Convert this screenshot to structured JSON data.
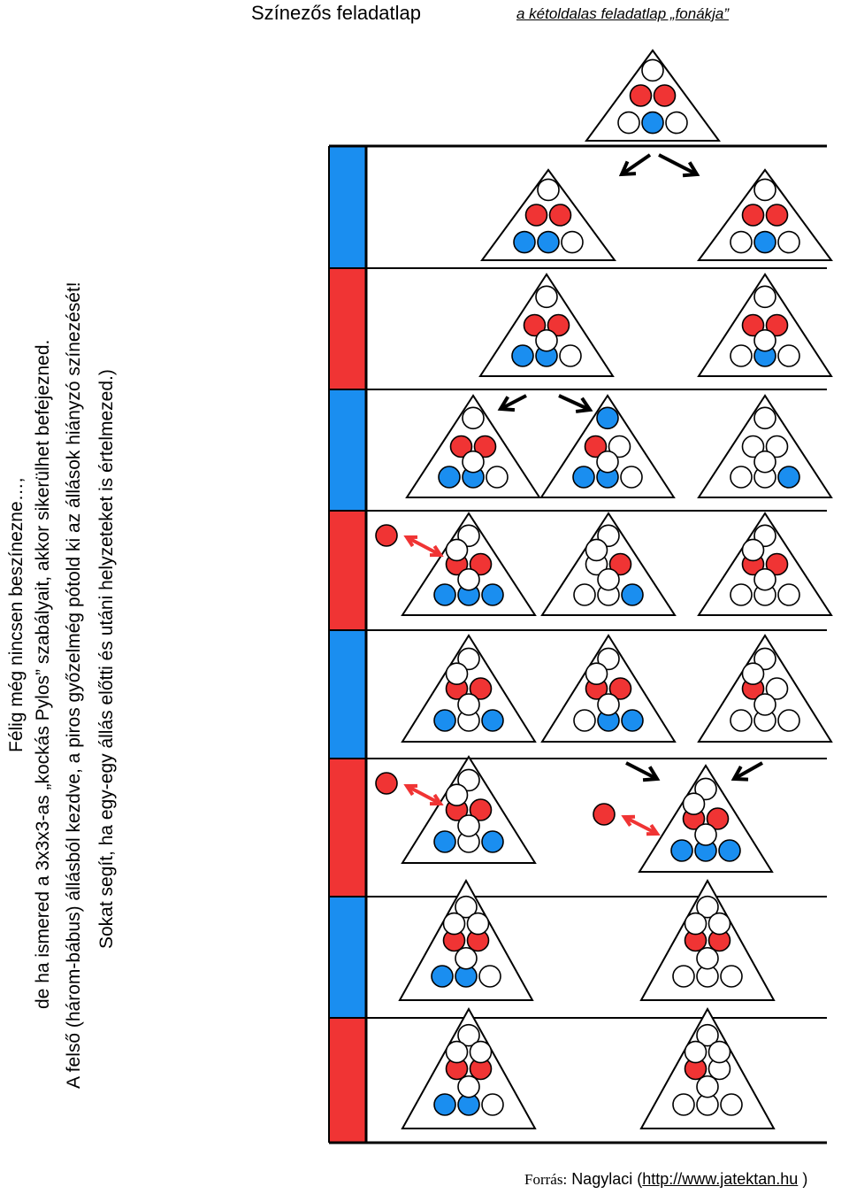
{
  "header": {
    "title": "Színezős feladatlap",
    "subtitle": "a kétoldalas feladatlap „fonákja”"
  },
  "instructions": {
    "line1": "Félig még nincsen beszínezne…,",
    "line2": "de ha ismered a 3x3x3-as „kockás Pylos” szabályait, akkor sikerülhet befejezned.",
    "line3": "A felső (három-bábus) állásból kezdve, a piros győzelmég pótold ki az állások hiányzó színezését!",
    "line4": "Sokat segít, ha egy-egy állás előtti és utáni helyzeteket is értelmezed.)"
  },
  "footer": {
    "label": "Forrás:",
    "author": "Nagylaci (",
    "url": "http://www.jatektan.hu",
    "close": ")"
  },
  "colors": {
    "red": "#f03434",
    "blue": "#1a8ef0",
    "stripe_blue": "#1a8ef0",
    "stripe_red": "#f03434",
    "arrow_red": "#f03434",
    "arrow_black": "#000000"
  },
  "turn_stripes": [
    "blue",
    "red",
    "blue",
    "red",
    "blue",
    "red",
    "blue",
    "red"
  ],
  "positions": [
    {
      "name": "start",
      "top": [
        "w"
      ],
      "mid": [
        "r",
        "r"
      ],
      "bot": [
        "w",
        "b",
        "w"
      ],
      "overlay": []
    },
    {
      "name": "row1-left",
      "top": [
        "w"
      ],
      "mid": [
        "r",
        "r"
      ],
      "bot": [
        "b",
        "b",
        "w"
      ],
      "overlay": []
    },
    {
      "name": "row1-right",
      "top": [
        "w"
      ],
      "mid": [
        "r",
        "r"
      ],
      "bot": [
        "w",
        "b",
        "w"
      ],
      "overlay": []
    },
    {
      "name": "row2-left",
      "top": [
        "w"
      ],
      "mid": [
        "r",
        "r"
      ],
      "bot": [
        "b",
        "b",
        "w"
      ],
      "overlay": [
        "w"
      ]
    },
    {
      "name": "row2-right",
      "top": [
        "w"
      ],
      "mid": [
        "r",
        "r"
      ],
      "bot": [
        "w",
        "b",
        "w"
      ],
      "overlay": [
        "w"
      ]
    },
    {
      "name": "row3-a",
      "top": [
        "w"
      ],
      "mid": [
        "r",
        "r"
      ],
      "bot": [
        "b",
        "b",
        "w"
      ],
      "overlay": [
        "w"
      ]
    },
    {
      "name": "row3-b",
      "top": [
        "b"
      ],
      "mid": [
        "r",
        "w"
      ],
      "bot": [
        "b",
        "b",
        "w"
      ],
      "overlay": [
        "w"
      ]
    },
    {
      "name": "row3-c",
      "top": [
        "w"
      ],
      "mid": [
        "w",
        "w"
      ],
      "bot": [
        "w",
        "w",
        "b"
      ],
      "overlay": [
        "w"
      ]
    },
    {
      "name": "row4-a",
      "top": [
        "w"
      ],
      "mid": [
        "r",
        "r"
      ],
      "bot": [
        "b",
        "b",
        "b"
      ],
      "overlay": [
        "w",
        "w"
      ]
    },
    {
      "name": "row4-b",
      "top": [
        "w"
      ],
      "mid": [
        "w",
        "r"
      ],
      "bot": [
        "w",
        "w",
        "b"
      ],
      "overlay": [
        "w",
        "w"
      ]
    },
    {
      "name": "row4-c",
      "top": [
        "w"
      ],
      "mid": [
        "r",
        "r"
      ],
      "bot": [
        "w",
        "w",
        "w"
      ],
      "overlay": [
        "w",
        "w"
      ]
    },
    {
      "name": "row5-a",
      "top": [
        "w"
      ],
      "mid": [
        "r",
        "r"
      ],
      "bot": [
        "b",
        "w",
        "b"
      ],
      "overlay": [
        "w",
        "w"
      ]
    },
    {
      "name": "row5-b",
      "top": [
        "w"
      ],
      "mid": [
        "r",
        "r"
      ],
      "bot": [
        "w",
        "b",
        "b"
      ],
      "overlay": [
        "w",
        "w"
      ]
    },
    {
      "name": "row5-c",
      "top": [
        "w"
      ],
      "mid": [
        "r",
        "w"
      ],
      "bot": [
        "w",
        "w",
        "w"
      ],
      "overlay": [
        "w",
        "w"
      ]
    },
    {
      "name": "row6-a",
      "top": [
        "w"
      ],
      "mid": [
        "r",
        "r"
      ],
      "bot": [
        "b",
        "w",
        "b"
      ],
      "overlay": [
        "w",
        "w"
      ]
    },
    {
      "name": "row6-b",
      "top": [
        "w"
      ],
      "mid": [
        "r",
        "r"
      ],
      "bot": [
        "b",
        "b",
        "b"
      ],
      "overlay": [
        "w",
        "w"
      ]
    },
    {
      "name": "row7-a",
      "top": [
        "w"
      ],
      "mid": [
        "r",
        "r"
      ],
      "bot": [
        "b",
        "b",
        "w"
      ],
      "overlay": [
        "w",
        "w",
        "w"
      ]
    },
    {
      "name": "row7-b",
      "top": [
        "w"
      ],
      "mid": [
        "r",
        "r"
      ],
      "bot": [
        "w",
        "w",
        "w"
      ],
      "overlay": [
        "w",
        "w",
        "w"
      ]
    },
    {
      "name": "row8-a",
      "top": [
        "w"
      ],
      "mid": [
        "r",
        "r"
      ],
      "bot": [
        "b",
        "b",
        "w"
      ],
      "overlay": [
        "w",
        "w",
        "w"
      ]
    },
    {
      "name": "row8-b",
      "top": [
        "w"
      ],
      "mid": [
        "r",
        "w"
      ],
      "bot": [
        "w",
        "w",
        "w"
      ],
      "overlay": [
        "w",
        "w",
        "w"
      ]
    }
  ]
}
